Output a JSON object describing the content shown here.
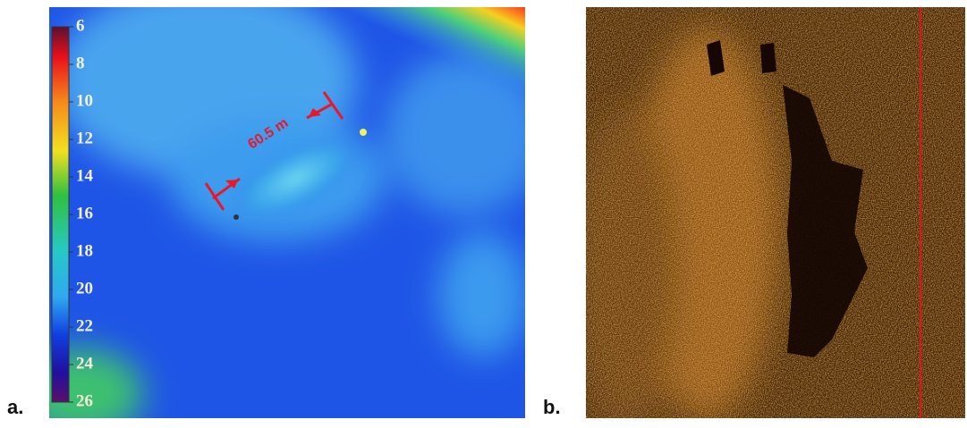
{
  "panels": [
    {
      "label": "a.",
      "measurement": "60.5 m",
      "colorbar": {
        "lim": [
          6,
          26
        ],
        "ticks": [
          6,
          8,
          10,
          12,
          14,
          16,
          18,
          20,
          22,
          24,
          26
        ]
      }
    },
    {
      "label": "b."
    }
  ]
}
